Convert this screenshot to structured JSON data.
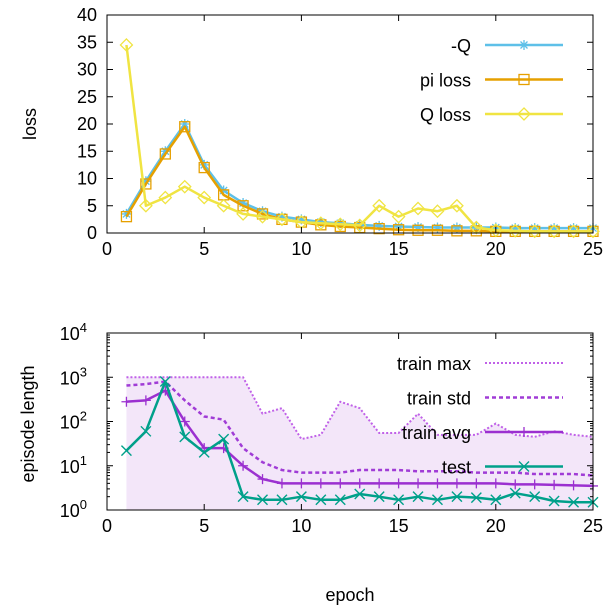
{
  "chart_data": [
    {
      "type": "line",
      "xlabel": "",
      "ylabel": "loss",
      "xlim": [
        0,
        25
      ],
      "ylim": [
        0,
        40
      ],
      "x_ticks": [
        "0",
        "5",
        "10",
        "15",
        "20",
        "25"
      ],
      "y_ticks": [
        "0",
        "5",
        "10",
        "15",
        "20",
        "25",
        "30",
        "35",
        "40"
      ],
      "grid": false,
      "legend_position": "top-right",
      "x": [
        1,
        2,
        3,
        4,
        5,
        6,
        7,
        8,
        9,
        10,
        11,
        12,
        13,
        14,
        15,
        16,
        17,
        18,
        19,
        20,
        21,
        22,
        23,
        24,
        25
      ],
      "series": [
        {
          "name": "-Q",
          "color": "#5ec0e8",
          "marker": "asterisk",
          "values": [
            3.5,
            9.5,
            15,
            20,
            12.5,
            7.8,
            5.5,
            4.0,
            3.0,
            2.5,
            2.0,
            1.8,
            1.5,
            1.3,
            1.2,
            1.1,
            1.0,
            1.0,
            1.0,
            1.0,
            0.9,
            0.9,
            0.9,
            0.9,
            0.9
          ]
        },
        {
          "name": "pi loss",
          "color": "#e6a000",
          "marker": "square",
          "values": [
            3.0,
            9.0,
            14.5,
            19.5,
            12.0,
            7.0,
            5.0,
            3.5,
            2.5,
            2.0,
            1.5,
            1.2,
            1.0,
            0.8,
            0.6,
            0.5,
            0.5,
            0.4,
            0.4,
            0.3,
            0.3,
            0.3,
            0.3,
            0.3,
            0.3
          ]
        },
        {
          "name": "Q loss",
          "color": "#f0e442",
          "marker": "diamond",
          "values": [
            34.5,
            5.0,
            6.5,
            8.5,
            6.5,
            5.0,
            3.5,
            3.0,
            2.5,
            2.0,
            1.8,
            1.6,
            1.4,
            5.0,
            3.0,
            4.5,
            4.0,
            5.0,
            1.0,
            0.5,
            0.4,
            0.3,
            0.3,
            0.3,
            0.3
          ]
        }
      ]
    },
    {
      "type": "line",
      "xlabel": "epoch",
      "ylabel": "episode length",
      "xlim": [
        0,
        25
      ],
      "ylim": [
        1,
        10000
      ],
      "yscale": "log",
      "x_ticks": [
        "0",
        "5",
        "10",
        "15",
        "20",
        "25"
      ],
      "y_ticks": [
        {
          "base": "10",
          "exp": "0"
        },
        {
          "base": "10",
          "exp": "1"
        },
        {
          "base": "10",
          "exp": "2"
        },
        {
          "base": "10",
          "exp": "3"
        },
        {
          "base": "10",
          "exp": "4"
        }
      ],
      "grid": false,
      "legend_position": "top-right",
      "shaded_region": {
        "series_top": "train max",
        "fill": "#f3e6f9"
      },
      "x": [
        1,
        2,
        3,
        4,
        5,
        6,
        7,
        8,
        9,
        10,
        11,
        12,
        13,
        14,
        15,
        16,
        17,
        18,
        19,
        20,
        21,
        22,
        23,
        24,
        25
      ],
      "series": [
        {
          "name": "train max",
          "color": "#c061e8",
          "style": "dotted",
          "values": [
            1000,
            1000,
            1000,
            1000,
            1000,
            1000,
            1000,
            150,
            200,
            40,
            50,
            280,
            200,
            55,
            55,
            150,
            50,
            50,
            50,
            90,
            50,
            45,
            60,
            50,
            45
          ]
        },
        {
          "name": "train std",
          "color": "#a03cd6",
          "style": "dashed",
          "values": [
            650,
            700,
            800,
            300,
            130,
            110,
            25,
            12,
            8,
            7,
            7,
            7,
            8,
            8,
            8,
            7.5,
            7.5,
            7.5,
            7,
            7,
            7,
            6.5,
            6.5,
            6.5,
            6
          ]
        },
        {
          "name": "train avg",
          "color": "#9b30d0",
          "style": "solid",
          "marker": "plus",
          "values": [
            280,
            300,
            500,
            100,
            25,
            25,
            10,
            5,
            4,
            4,
            4,
            4,
            4,
            4,
            4,
            4,
            4,
            4,
            4,
            4,
            3.8,
            3.8,
            3.7,
            3.6,
            3.5
          ]
        },
        {
          "name": "test",
          "color": "#00a08a",
          "style": "solid",
          "marker": "x",
          "values": [
            22,
            60,
            800,
            45,
            20,
            40,
            2,
            1.7,
            1.7,
            2,
            1.7,
            1.7,
            2.3,
            2,
            1.7,
            2,
            1.7,
            2,
            1.9,
            1.7,
            2.4,
            2,
            1.6,
            1.5,
            1.5
          ]
        }
      ]
    }
  ]
}
